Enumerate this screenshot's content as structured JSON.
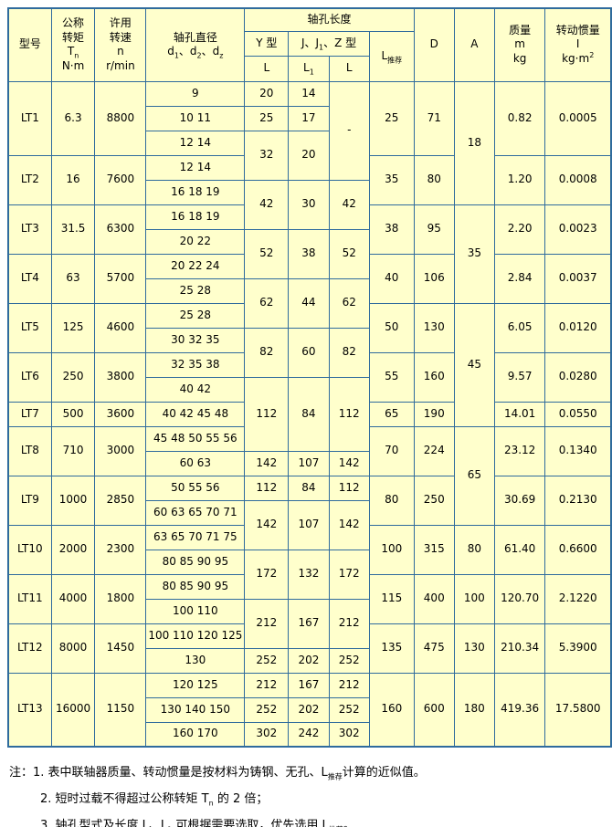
{
  "colors": {
    "cell_bg": "#FFFFCC",
    "border": "#2F6B9D",
    "text": "#000000",
    "page_bg": "#FFFFFF"
  },
  "header": {
    "model": "型号",
    "torque_l1": "公称",
    "torque_l2": "转矩",
    "torque_sym": [
      {
        "t": "T"
      },
      {
        "sub": "n"
      }
    ],
    "torque_unit": "N·m",
    "speed_l1": "许用",
    "speed_l2": "转速",
    "speed_sym": "n",
    "speed_unit": "r/min",
    "dia_l1": "轴孔直径",
    "dia_l2": [
      {
        "t": "d"
      },
      {
        "sub": "1"
      },
      {
        "t": "、d"
      },
      {
        "sub": "2"
      },
      {
        "t": "、d"
      },
      {
        "sub": "z"
      }
    ],
    "len_group": "轴孔长度",
    "y_type": "Y 型",
    "jz_type": [
      {
        "t": "J、J"
      },
      {
        "sub": "1"
      },
      {
        "t": "、Z 型"
      }
    ],
    "col_L": "L",
    "col_L1": [
      {
        "t": "L"
      },
      {
        "sub": "1"
      }
    ],
    "col_Lz": "L",
    "l_rec": [
      {
        "t": "L"
      },
      {
        "sub": "推荐"
      }
    ],
    "D": "D",
    "A": "A",
    "mass_l1": "质量",
    "mass_sym": "m",
    "mass_unit": "kg",
    "inertia_l1": "转动惯量",
    "inertia_sym": "I",
    "inertia_unit": [
      {
        "t": "kg·m"
      },
      {
        "sup": "2"
      }
    ]
  },
  "rows": [
    {
      "model": "LT1",
      "tq": "6.3",
      "sp": "8800",
      "d": "9",
      "y": "20",
      "j": "14",
      "z": "-",
      "lr": "25",
      "dd": "71",
      "a": "18",
      "m": "0.82",
      "i": "0.0005"
    },
    {
      "d": "10 11",
      "y": "25",
      "j": "17"
    },
    {
      "d": "12 14",
      "y": "32",
      "j": "20"
    },
    {
      "model": "LT2",
      "tq": "16",
      "sp": "7600",
      "d": "12 14",
      "lr": "35",
      "dd": "80",
      "m": "1.20",
      "i": "0.0008"
    },
    {
      "d": "16 18 19",
      "y": "42",
      "j": "30",
      "z": "42"
    },
    {
      "model": "LT3",
      "tq": "31.5",
      "sp": "6300",
      "d": "16 18 19",
      "lr": "38",
      "dd": "95",
      "a": "35",
      "m": "2.20",
      "i": "0.0023"
    },
    {
      "d": "20 22",
      "y": "52",
      "j": "38",
      "z": "52"
    },
    {
      "model": "LT4",
      "tq": "63",
      "sp": "5700",
      "d": "20 22 24",
      "lr": "40",
      "dd": "106",
      "m": "2.84",
      "i": "0.0037"
    },
    {
      "d": "25 28",
      "y": "62",
      "j": "44",
      "z": "62"
    },
    {
      "model": "LT5",
      "tq": "125",
      "sp": "4600",
      "d": "25 28",
      "lr": "50",
      "dd": "130",
      "a": "45",
      "m": "6.05",
      "i": "0.0120"
    },
    {
      "d": "30 32 35",
      "y": "82",
      "j": "60",
      "z": "82"
    },
    {
      "model": "LT6",
      "tq": "250",
      "sp": "3800",
      "d": "32 35 38",
      "lr": "55",
      "dd": "160",
      "m": "9.57",
      "i": "0.0280"
    },
    {
      "d": "40 42",
      "y": "112",
      "j": "84",
      "z": "112"
    },
    {
      "model": "LT7",
      "tq": "500",
      "sp": "3600",
      "d": "40 42 45 48",
      "lr": "65",
      "dd": "190",
      "m": "14.01",
      "i": "0.0550"
    },
    {
      "model": "LT8",
      "tq": "710",
      "sp": "3000",
      "d": "45 48 50 55 56",
      "lr": "70",
      "dd": "224",
      "a": "65",
      "m": "23.12",
      "i": "0.1340"
    },
    {
      "d": "60 63",
      "y": "142",
      "j": "107",
      "z": "142"
    },
    {
      "model": "LT9",
      "tq": "1000",
      "sp": "2850",
      "d": "50 55 56",
      "y": "112",
      "j": "84",
      "z": "112",
      "lr": "80",
      "dd": "250",
      "m": "30.69",
      "i": "0.2130"
    },
    {
      "d": "60 63 65 70 71",
      "y": "142",
      "j": "107",
      "z": "142"
    },
    {
      "model": "LT10",
      "tq": "2000",
      "sp": "2300",
      "d": "63 65 70 71 75",
      "lr": "100",
      "dd": "315",
      "a": "80",
      "m": "61.40",
      "i": "0.6600"
    },
    {
      "d": "80 85 90 95",
      "y": "172",
      "j": "132",
      "z": "172"
    },
    {
      "model": "LT11",
      "tq": "4000",
      "sp": "1800",
      "d": "80 85 90 95",
      "lr": "115",
      "dd": "400",
      "a": "100",
      "m": "120.70",
      "i": "2.1220"
    },
    {
      "d": "100 110",
      "y": "212",
      "j": "167",
      "z": "212"
    },
    {
      "model": "LT12",
      "tq": "8000",
      "sp": "1450",
      "d": "100 110 120 125",
      "lr": "135",
      "dd": "475",
      "a": "130",
      "m": "210.34",
      "i": "5.3900"
    },
    {
      "d": "130",
      "y": "252",
      "j": "202",
      "z": "252"
    },
    {
      "model": "LT13",
      "tq": "16000",
      "sp": "1150",
      "d": "120 125",
      "y": "212",
      "j": "167",
      "z": "212",
      "lr": "160",
      "dd": "600",
      "a": "180",
      "m": "419.36",
      "i": "17.5800"
    },
    {
      "d": "130 140 150",
      "y": "252",
      "j": "202",
      "z": "252"
    },
    {
      "d": "160 170",
      "y": "302",
      "j": "242",
      "z": "302"
    }
  ],
  "notes": {
    "prefix": "注：",
    "items": [
      [
        {
          "t": "1. 表中联轴器质量、转动惯量是按材料为铸钢、无孔、L"
        },
        {
          "sub": "推荐"
        },
        {
          "t": "计算的近似值。"
        }
      ],
      [
        {
          "t": "2. 短时过载不得超过公称转矩 T"
        },
        {
          "sub": "n"
        },
        {
          "t": " 的 2 倍；"
        }
      ],
      [
        {
          "t": "3. 轴孔型式及长度 L、L"
        },
        {
          "sub": "1"
        },
        {
          "t": " 可根据需要选取，优先选用 L"
        },
        {
          "sub": "推荐"
        },
        {
          "t": "。"
        }
      ]
    ]
  }
}
